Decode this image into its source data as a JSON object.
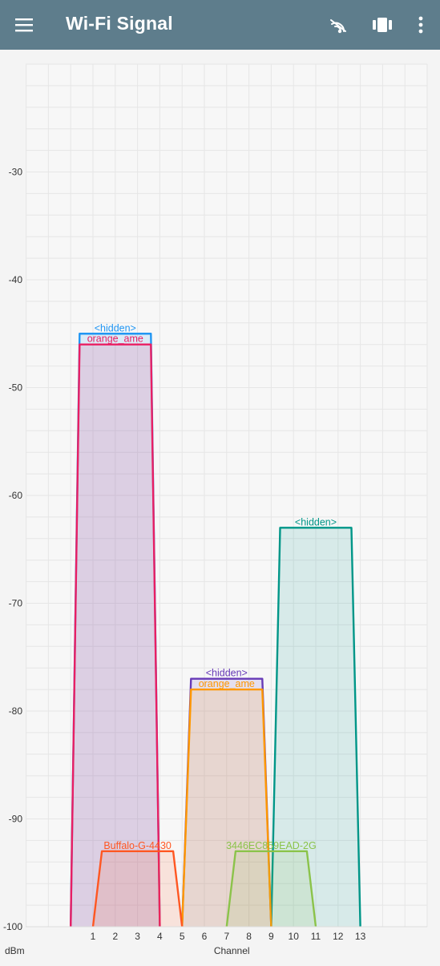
{
  "app": {
    "title": "Wi-Fi Signal",
    "icons": {
      "menu": "hamburger-menu-icon",
      "scan": "wifi-scan-icon",
      "view": "carousel-view-icon",
      "more": "more-vert-icon"
    }
  },
  "chart_data": {
    "type": "area",
    "xlabel": "Channel",
    "ylabel": "dBm",
    "ylim": [
      -100,
      -20
    ],
    "yticks": [
      -30,
      -40,
      -50,
      -60,
      -70,
      -80,
      -90,
      -100
    ],
    "xticks": [
      1,
      2,
      3,
      4,
      5,
      6,
      7,
      8,
      9,
      10,
      11,
      12,
      13
    ],
    "grid": true,
    "series": [
      {
        "name": "<hidden>",
        "channel": 2,
        "width": 4,
        "level": -45,
        "color": "#2196f3"
      },
      {
        "name": "orange_ame",
        "channel": 2,
        "width": 4,
        "level": -46,
        "color": "#e91e63"
      },
      {
        "name": "<hidden>",
        "channel": 11,
        "width": 4,
        "level": -63,
        "color": "#009688"
      },
      {
        "name": "<hidden>",
        "channel": 7,
        "width": 4,
        "level": -77,
        "color": "#673ab7"
      },
      {
        "name": "orange_ame",
        "channel": 7,
        "width": 4,
        "level": -78,
        "color": "#ff9800"
      },
      {
        "name": "Buffalo-G-4430",
        "channel": 3,
        "width": 4,
        "level": -93,
        "color": "#ff5722"
      },
      {
        "name": "3446EC859EAD-2G",
        "channel": 9,
        "width": 4,
        "level": -93,
        "color": "#8bc34a"
      }
    ]
  }
}
